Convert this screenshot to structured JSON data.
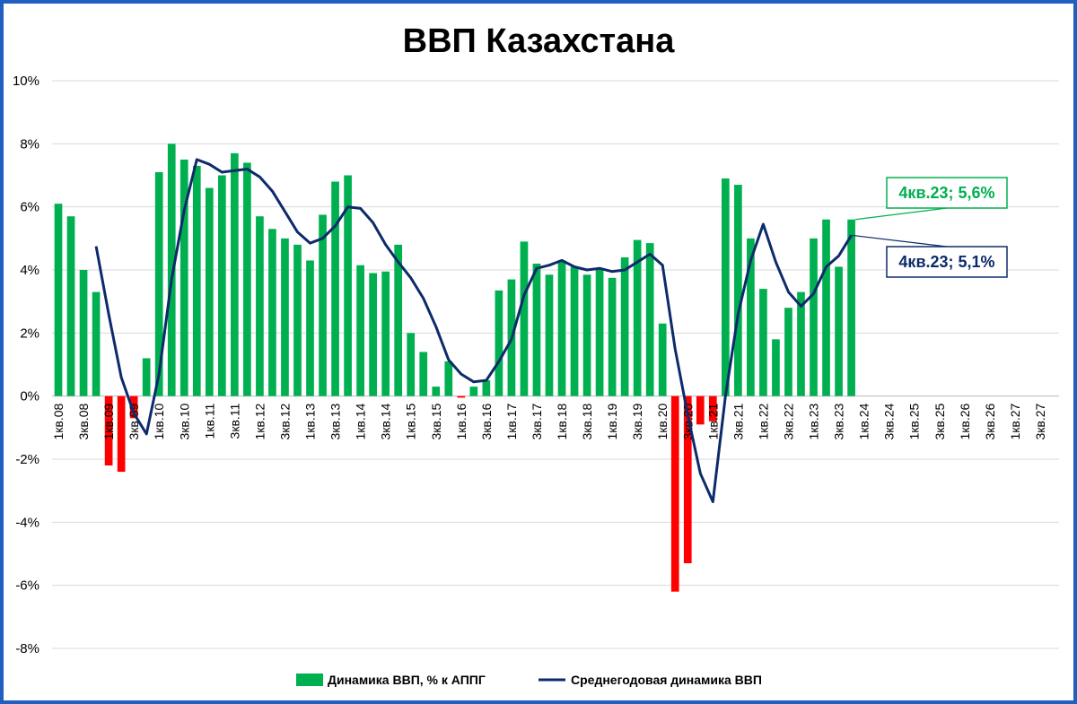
{
  "chart_data": {
    "type": "bar",
    "title": "ВВП Казахстана",
    "y_unit": "%",
    "ylim": [
      -8,
      10
    ],
    "y_ticks": [
      "10%",
      "8%",
      "6%",
      "4%",
      "2%",
      "0%",
      "-2%",
      "-4%",
      "-6%",
      "-8%"
    ],
    "y_tick_values": [
      10,
      8,
      6,
      4,
      2,
      0,
      -2,
      -4,
      -6,
      -8
    ],
    "grid": true,
    "legend_position": "bottom",
    "x_tick_labels": [
      "1кв.08",
      "3кв.08",
      "1кв.09",
      "3кв.09",
      "1кв.10",
      "3кв.10",
      "1кв.11",
      "3кв.11",
      "1кв.12",
      "3кв.12",
      "1кв.13",
      "3кв.13",
      "1кв.14",
      "3кв.14",
      "1кв.15",
      "3кв.15",
      "1кв.16",
      "3кв.16",
      "1кв.17",
      "3кв.17",
      "1кв.18",
      "3кв.18",
      "1кв.19",
      "3кв.19",
      "1кв.20",
      "3кв.20",
      "1кв.21",
      "3кв.21",
      "1кв.22",
      "3кв.22",
      "1кв.23",
      "3кв.23",
      "1кв.24",
      "3кв.24",
      "1кв.25",
      "3кв.25",
      "1кв.26",
      "3кв.26",
      "1кв.27",
      "3кв.27"
    ],
    "period_count": 80,
    "series": [
      {
        "name": "Динамика ВВП, % к АППГ",
        "kind": "bar",
        "color_positive": "#00b050",
        "color_negative": "#ff0000",
        "values": [
          6.1,
          5.7,
          4.0,
          3.3,
          -2.2,
          -2.4,
          -0.7,
          1.2,
          7.1,
          8.0,
          7.5,
          7.3,
          6.6,
          7.0,
          7.7,
          7.4,
          5.7,
          5.3,
          5.0,
          4.8,
          4.3,
          5.75,
          6.8,
          7.0,
          4.15,
          3.9,
          3.95,
          4.8,
          2.0,
          1.4,
          0.3,
          1.1,
          -0.05,
          0.3,
          0.5,
          3.35,
          3.7,
          4.9,
          4.2,
          3.85,
          4.3,
          4.1,
          3.85,
          4.05,
          3.75,
          4.4,
          4.95,
          4.85,
          2.3,
          -6.2,
          -5.3,
          -0.9,
          -0.8,
          6.9,
          6.7,
          5.0,
          3.4,
          1.8,
          2.8,
          3.3,
          5.0,
          5.6,
          4.1,
          5.6
        ]
      },
      {
        "name": "Среднегодовая динамика ВВП",
        "kind": "line",
        "color": "#0d2a6b",
        "values": [
          null,
          null,
          null,
          4.75,
          2.6,
          0.6,
          -0.55,
          -1.2,
          0.7,
          3.7,
          5.9,
          7.5,
          7.35,
          7.1,
          7.15,
          7.2,
          6.95,
          6.5,
          5.85,
          5.2,
          4.85,
          5.0,
          5.4,
          6.0,
          5.95,
          5.5,
          4.8,
          4.25,
          3.75,
          3.1,
          2.2,
          1.15,
          0.7,
          0.45,
          0.5,
          1.1,
          1.8,
          3.2,
          4.05,
          4.15,
          4.3,
          4.1,
          4.0,
          4.05,
          3.95,
          4.0,
          4.25,
          4.5,
          4.15,
          1.5,
          -0.6,
          -2.45,
          -3.35,
          0.0,
          2.6,
          4.3,
          5.45,
          4.25,
          3.3,
          2.85,
          3.25,
          4.1,
          4.45,
          5.1
        ]
      }
    ],
    "annotations": [
      {
        "text": "4кв.23; 5,6%",
        "color": "#00b050"
      },
      {
        "text": "4кв.23; 5,1%",
        "color": "#0d2a6b"
      }
    ]
  }
}
